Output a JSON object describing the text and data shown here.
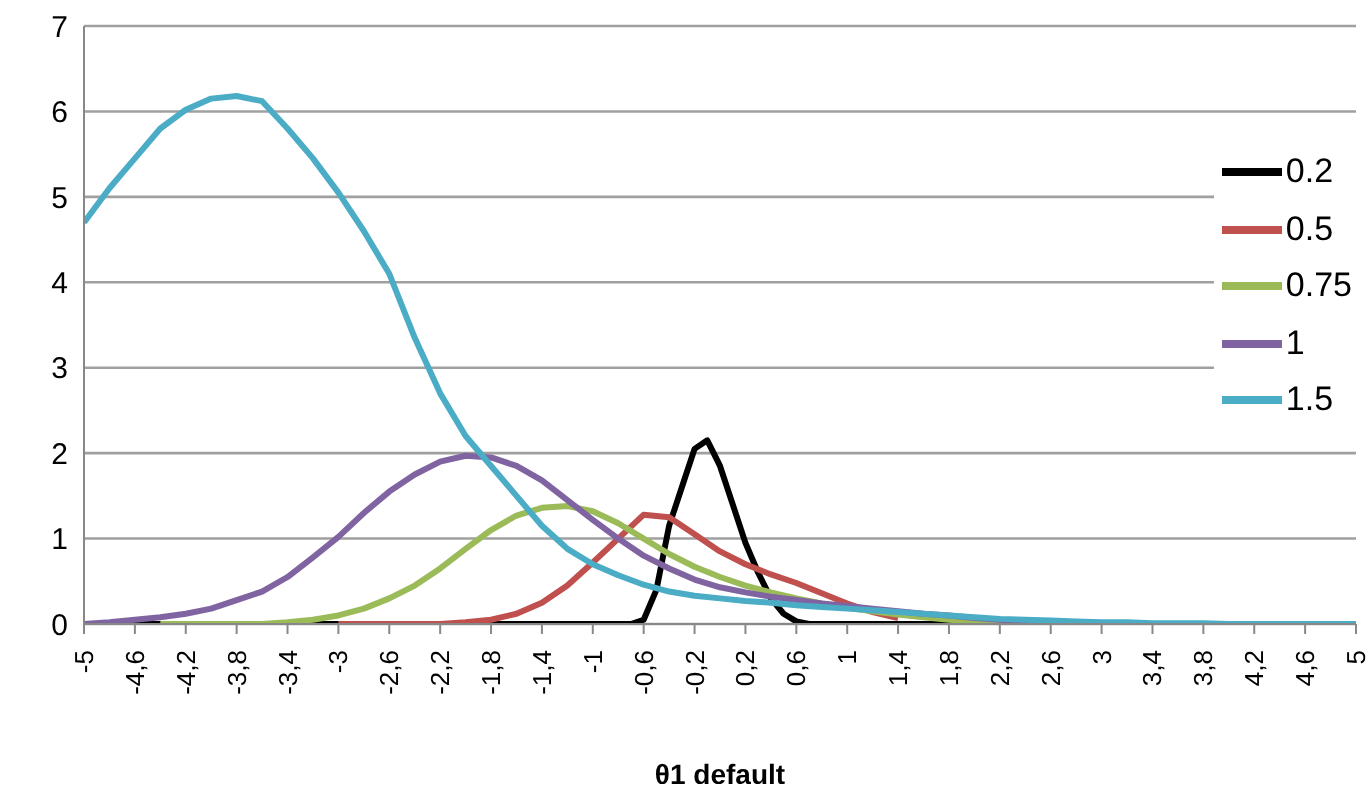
{
  "chart_data": {
    "type": "line",
    "xlabel": "θ1 default",
    "x": [
      -5,
      -4.8,
      -4.6,
      -4.4,
      -4.2,
      -4,
      -3.8,
      -3.6,
      -3.4,
      -3.2,
      -3,
      -2.8,
      -2.6,
      -2.4,
      -2.2,
      -2,
      -1.8,
      -1.6,
      -1.4,
      -1.2,
      -1,
      -0.8,
      -0.6,
      -0.4,
      -0.2,
      0,
      0.2,
      0.4,
      0.6,
      0.8,
      1,
      1.2,
      1.4,
      1.6,
      1.8,
      2,
      2.2,
      2.4,
      2.6,
      2.8,
      3,
      3.2,
      3.4,
      3.6,
      3.8,
      4,
      4.2,
      4.4,
      4.6,
      4.8,
      5
    ],
    "series": [
      {
        "name": "0.2",
        "color": "#000000",
        "x": [
          -5,
          -0.7,
          -0.6,
          -0.5,
          -0.4,
          -0.3,
          -0.2,
          -0.1,
          0,
          0.1,
          0.2,
          0.3,
          0.4,
          0.5,
          0.6,
          0.7,
          5
        ],
        "values": [
          0,
          0,
          0.05,
          0.4,
          1.15,
          1.6,
          2.05,
          2.15,
          1.85,
          1.4,
          0.95,
          0.6,
          0.3,
          0.12,
          0.03,
          0,
          0
        ]
      },
      {
        "name": "0.5",
        "color": "#c0504d",
        "values": [
          null,
          null,
          null,
          null,
          null,
          null,
          null,
          null,
          null,
          null,
          0,
          0,
          0,
          0,
          0,
          0.02,
          0.05,
          0.12,
          0.25,
          0.45,
          0.72,
          1.0,
          1.28,
          1.25,
          1.05,
          0.85,
          0.7,
          0.58,
          0.48,
          0.36,
          0.24,
          0.14,
          0.07,
          null,
          null,
          null,
          null,
          null,
          null,
          null,
          null,
          null,
          null,
          null,
          null,
          null,
          null,
          null,
          null,
          null,
          null
        ]
      },
      {
        "name": "0.75",
        "color": "#9bbb59",
        "values": [
          null,
          null,
          null,
          0,
          0,
          0,
          0,
          0,
          0.02,
          0.05,
          0.1,
          0.18,
          0.3,
          0.45,
          0.65,
          0.88,
          1.1,
          1.27,
          1.36,
          1.38,
          1.32,
          1.18,
          1.0,
          0.82,
          0.67,
          0.55,
          0.45,
          0.37,
          0.3,
          0.24,
          0.19,
          0.15,
          0.11,
          0.08,
          0.05,
          0.03,
          0.02,
          0.01,
          0,
          0,
          null,
          null,
          null,
          null,
          null,
          null,
          null,
          null,
          null,
          null,
          null
        ]
      },
      {
        "name": "1",
        "color": "#8064a2",
        "values": [
          0,
          0.02,
          0.05,
          0.08,
          0.12,
          0.18,
          0.28,
          0.38,
          0.55,
          0.78,
          1.02,
          1.3,
          1.55,
          1.75,
          1.9,
          1.97,
          1.95,
          1.85,
          1.68,
          1.45,
          1.22,
          1.0,
          0.8,
          0.65,
          0.52,
          0.43,
          0.37,
          0.32,
          0.28,
          0.24,
          0.21,
          0.18,
          0.15,
          0.12,
          0.1,
          0.07,
          0.05,
          0.03,
          0.02,
          0.01,
          0,
          0,
          0,
          0,
          0,
          0,
          0,
          0,
          0,
          0,
          0
        ]
      },
      {
        "name": "1.5",
        "color": "#4bacc6",
        "values": [
          4.7,
          5.1,
          5.45,
          5.8,
          6.02,
          6.15,
          6.18,
          6.12,
          5.8,
          5.45,
          5.05,
          4.6,
          4.1,
          3.35,
          2.7,
          2.2,
          1.85,
          1.5,
          1.15,
          0.88,
          0.7,
          0.57,
          0.46,
          0.38,
          0.33,
          0.3,
          0.27,
          0.25,
          0.22,
          0.2,
          0.18,
          0.16,
          0.14,
          0.12,
          0.1,
          0.08,
          0.06,
          0.05,
          0.04,
          0.03,
          0.02,
          0.02,
          0.01,
          0.01,
          0.01,
          0,
          0,
          0,
          0,
          0,
          0
        ]
      }
    ],
    "xlim": [
      -5,
      5
    ],
    "xticks": [
      -5,
      {
        "value": -4.6,
        "label": "-4,6"
      },
      {
        "value": -4.2,
        "label": "-4,2"
      },
      {
        "value": -3.8,
        "label": "-3,8"
      },
      {
        "value": -3.4,
        "label": "-3,4"
      },
      -3,
      {
        "value": -2.6,
        "label": "-2,6"
      },
      {
        "value": -2.2,
        "label": "-2,2"
      },
      {
        "value": -1.8,
        "label": "-1,8"
      },
      {
        "value": -1.4,
        "label": "-1,4"
      },
      -1,
      {
        "value": -0.6,
        "label": "-0,6"
      },
      {
        "value": -0.2,
        "label": "-0,2"
      },
      {
        "value": 0.2,
        "label": "0,2"
      },
      {
        "value": 0.6,
        "label": "0,6"
      },
      1,
      {
        "value": 1.4,
        "label": "1,4"
      },
      {
        "value": 1.8,
        "label": "1,8"
      },
      {
        "value": 2.2,
        "label": "2,2"
      },
      {
        "value": 2.6,
        "label": "2,6"
      },
      3,
      {
        "value": 3.4,
        "label": "3,4"
      },
      {
        "value": 3.8,
        "label": "3,8"
      },
      {
        "value": 4.2,
        "label": "4,2"
      },
      {
        "value": 4.6,
        "label": "4,6"
      },
      5
    ],
    "ylim": [
      0,
      7
    ],
    "yticks": [
      0,
      1,
      2,
      3,
      4,
      5,
      6,
      7
    ],
    "grid": "y",
    "legend": "right",
    "marker": "none",
    "line_style": "solid"
  }
}
